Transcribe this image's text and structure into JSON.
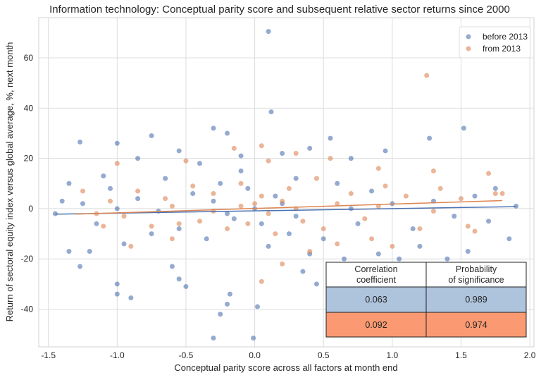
{
  "chart_data": {
    "type": "scatter",
    "title": "Information technology: Conceptual parity score and subsequent relative sector returns since 2000",
    "xlabel": "Conceptual parity score across all factors at month end",
    "ylabel": "Return of sectoral equity index versus global average, %, next month",
    "xlim": [
      -1.57,
      2.03
    ],
    "ylim": [
      -55,
      76
    ],
    "xticks": [
      "-1.5",
      "-1.0",
      "-0.5",
      "0.0",
      "0.5",
      "1.0",
      "1.5",
      "2.0"
    ],
    "xtick_values": [
      -1.5,
      -1.0,
      -0.5,
      0.0,
      0.5,
      1.0,
      1.5,
      2.0
    ],
    "yticks": [
      "-40",
      "-20",
      "0",
      "20",
      "40",
      "60"
    ],
    "ytick_values": [
      -40,
      -20,
      0,
      20,
      40,
      60
    ],
    "grid": true,
    "legend": "top-right",
    "series": [
      {
        "name": "before 2013",
        "color": "#4c72b0",
        "regression": {
          "x": [
            -1.45,
            1.9
          ],
          "y": [
            -2.2,
            0.8
          ]
        },
        "points": [
          [
            0.1,
            70.5
          ],
          [
            0.12,
            38.5
          ],
          [
            -0.3,
            32
          ],
          [
            -0.75,
            29
          ],
          [
            -1.0,
            26
          ],
          [
            -1.27,
            26.5
          ],
          [
            -0.2,
            30
          ],
          [
            1.52,
            32
          ],
          [
            1.27,
            28
          ],
          [
            0.55,
            28
          ],
          [
            -0.55,
            23
          ],
          [
            -0.85,
            20
          ],
          [
            0.95,
            23
          ],
          [
            0.4,
            24
          ],
          [
            0.2,
            22
          ],
          [
            -0.1,
            21
          ],
          [
            0.7,
            20
          ],
          [
            -1.1,
            13
          ],
          [
            -1.35,
            10
          ],
          [
            -1.4,
            3
          ],
          [
            -1.45,
            -2
          ],
          [
            -1.35,
            -17
          ],
          [
            -1.27,
            -23
          ],
          [
            -1.2,
            -17
          ],
          [
            -1.0,
            -30
          ],
          [
            -1.0,
            -34
          ],
          [
            -0.9,
            -35.5
          ],
          [
            -0.18,
            -34
          ],
          [
            -0.2,
            -38
          ],
          [
            -0.25,
            -42
          ],
          [
            -0.3,
            -51.5
          ],
          [
            -0.01,
            -51.5
          ],
          [
            0.02,
            -39
          ],
          [
            -0.5,
            -31
          ],
          [
            -0.55,
            -28
          ],
          [
            -0.6,
            -23
          ],
          [
            0.35,
            -25
          ],
          [
            0.45,
            -30
          ],
          [
            0.55,
            -24
          ],
          [
            0.65,
            -20
          ],
          [
            0.9,
            -18
          ],
          [
            1.2,
            -15
          ],
          [
            1.55,
            -17
          ],
          [
            1.05,
            -20
          ],
          [
            1.4,
            -20
          ],
          [
            1.85,
            -12
          ],
          [
            1.75,
            8
          ],
          [
            1.7,
            -5
          ],
          [
            1.6,
            5
          ],
          [
            1.45,
            -3
          ],
          [
            1.3,
            3
          ],
          [
            1.15,
            -8
          ],
          [
            0.85,
            7
          ],
          [
            0.75,
            -6
          ],
          [
            0.6,
            10
          ],
          [
            0.5,
            -12
          ],
          [
            0.3,
            12
          ],
          [
            0.25,
            -10
          ],
          [
            0.15,
            5
          ],
          [
            0.05,
            -6
          ],
          [
            -0.05,
            8
          ],
          [
            -0.15,
            -4
          ],
          [
            -0.25,
            10
          ],
          [
            -0.35,
            -12
          ],
          [
            -0.45,
            6
          ],
          [
            -0.55,
            -8
          ],
          [
            -0.65,
            12
          ],
          [
            -0.75,
            -10
          ],
          [
            -0.85,
            4
          ],
          [
            -0.95,
            -14
          ],
          [
            -1.05,
            8
          ],
          [
            -1.15,
            -6
          ],
          [
            -1.25,
            2
          ],
          [
            0.1,
            -15
          ],
          [
            -0.1,
            15
          ],
          [
            0.4,
            -18
          ],
          [
            -0.4,
            18
          ],
          [
            0.2,
            2
          ],
          [
            -0.2,
            -2
          ],
          [
            0.0,
            0
          ],
          [
            0.3,
            -3
          ],
          [
            -0.3,
            3
          ],
          [
            0.7,
            0
          ],
          [
            -0.7,
            -1
          ],
          [
            1.0,
            2
          ],
          [
            -1.0,
            0
          ],
          [
            1.9,
            1
          ]
        ]
      },
      {
        "name": "from 2013",
        "color": "#dd8452",
        "regression": {
          "x": [
            -1.3,
            1.8
          ],
          "y": [
            -2.2,
            3.2
          ]
        },
        "points": [
          [
            1.25,
            53
          ],
          [
            0.1,
            19
          ],
          [
            -0.15,
            24
          ],
          [
            0.05,
            25
          ],
          [
            0.3,
            22
          ],
          [
            0.55,
            20
          ],
          [
            0.9,
            16
          ],
          [
            1.7,
            14
          ],
          [
            1.3,
            15
          ],
          [
            -0.5,
            19
          ],
          [
            -1.0,
            18
          ],
          [
            -1.25,
            7
          ],
          [
            -1.1,
            -7
          ],
          [
            -0.9,
            -15
          ],
          [
            -0.6,
            -12
          ],
          [
            0.05,
            -29
          ],
          [
            0.2,
            -22
          ],
          [
            0.4,
            -17
          ],
          [
            0.6,
            -14
          ],
          [
            0.85,
            -12
          ],
          [
            1.0,
            -15
          ],
          [
            1.2,
            -8
          ],
          [
            1.55,
            -7
          ],
          [
            1.6,
            -9
          ],
          [
            1.75,
            6
          ],
          [
            1.5,
            4
          ],
          [
            1.35,
            8
          ],
          [
            1.1,
            5
          ],
          [
            0.95,
            9
          ],
          [
            0.8,
            -4
          ],
          [
            0.7,
            6
          ],
          [
            0.5,
            -8
          ],
          [
            0.45,
            12
          ],
          [
            0.35,
            -5
          ],
          [
            0.25,
            8
          ],
          [
            0.15,
            -10
          ],
          [
            0.05,
            5
          ],
          [
            -0.05,
            -6
          ],
          [
            -0.1,
            10
          ],
          [
            -0.2,
            -8
          ],
          [
            -0.3,
            6
          ],
          [
            -0.4,
            -5
          ],
          [
            -0.45,
            9
          ],
          [
            -0.55,
            -6
          ],
          [
            -0.65,
            4
          ],
          [
            -0.75,
            -7
          ],
          [
            -0.85,
            7
          ],
          [
            -0.95,
            -3
          ],
          [
            -1.05,
            3
          ],
          [
            -1.15,
            -2
          ],
          [
            0.0,
            2
          ],
          [
            0.1,
            -2
          ],
          [
            0.2,
            3
          ],
          [
            -0.1,
            1
          ],
          [
            0.3,
            0
          ],
          [
            -0.3,
            -1
          ],
          [
            0.6,
            2
          ],
          [
            -0.6,
            1
          ],
          [
            0.9,
            1
          ],
          [
            1.3,
            -1
          ],
          [
            1.8,
            6
          ]
        ]
      }
    ]
  },
  "stats_table": {
    "header_lines": [
      [
        "Correlation",
        "coefficient"
      ],
      [
        "Probability",
        "of significance"
      ]
    ],
    "rows": [
      {
        "values": [
          "0.063",
          "0.989"
        ],
        "color": "#aec3dc"
      },
      {
        "values": [
          "0.092",
          "0.974"
        ],
        "color": "#fb9a72"
      }
    ]
  }
}
